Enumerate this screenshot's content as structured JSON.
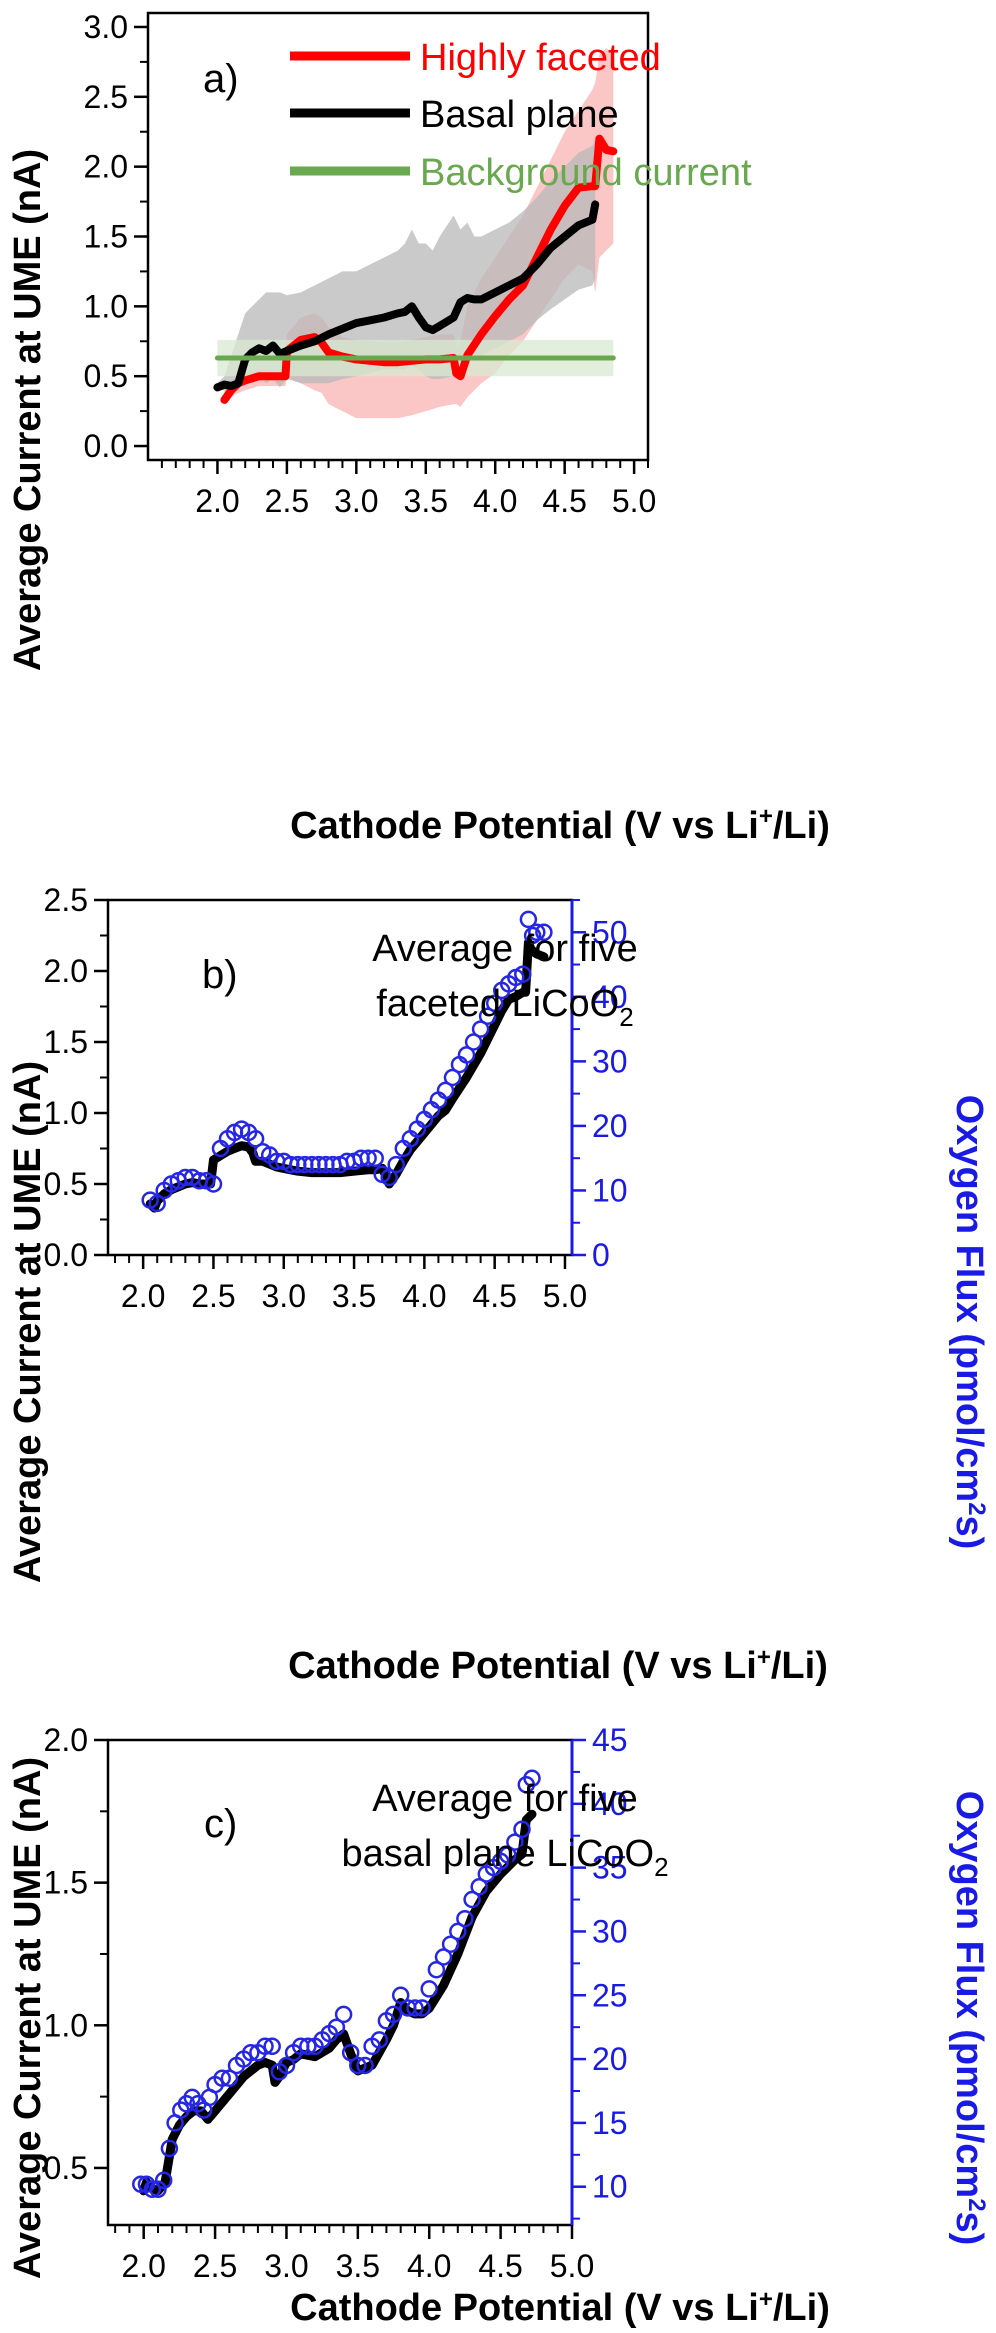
{
  "colors": {
    "faceted": "#ff0000",
    "faceted_band": "#f9b3b3",
    "basal": "#000000",
    "basal_band": "#b8b8b8",
    "background": "#6aa84f",
    "background_band": "#d7ead0",
    "flux": "#2626e6"
  },
  "chart_data": [
    {
      "panel": "a",
      "panel_label": "a)",
      "type": "line",
      "xlabel": "Cathode Potential (V vs Li+/Li)",
      "xlabel_parts": [
        "Cathode Potential (V vs Li",
        "+",
        "/Li)"
      ],
      "ylabel": "Average Current at UME (nA)",
      "xlim": [
        1.5,
        5.1
      ],
      "ylim": [
        -0.1,
        3.1
      ],
      "xticks": [
        "2.0",
        "2.5",
        "3.0",
        "3.5",
        "4.0",
        "4.5",
        "5.0"
      ],
      "yticks": [
        "0.0",
        "0.5",
        "1.0",
        "1.5",
        "2.0",
        "2.5",
        "3.0"
      ],
      "legend": [
        "Highly faceted",
        "Basal plane",
        "Background current"
      ],
      "legend_position": "top-left",
      "series": [
        {
          "name": "Highly faceted",
          "color": "faceted",
          "x": [
            2.05,
            2.1,
            2.15,
            2.2,
            2.3,
            2.4,
            2.49,
            2.5,
            2.6,
            2.7,
            2.75,
            2.8,
            2.9,
            3.0,
            3.1,
            3.2,
            3.3,
            3.4,
            3.5,
            3.6,
            3.7,
            3.72,
            3.75,
            3.8,
            3.9,
            4.0,
            4.1,
            4.2,
            4.3,
            4.4,
            4.5,
            4.6,
            4.7,
            4.72,
            4.75,
            4.8,
            4.85
          ],
          "y": [
            0.33,
            0.4,
            0.45,
            0.47,
            0.5,
            0.5,
            0.5,
            0.68,
            0.76,
            0.78,
            0.74,
            0.67,
            0.64,
            0.62,
            0.61,
            0.6,
            0.6,
            0.61,
            0.62,
            0.62,
            0.63,
            0.52,
            0.5,
            0.65,
            0.8,
            0.93,
            1.05,
            1.15,
            1.35,
            1.55,
            1.72,
            1.85,
            1.86,
            1.86,
            2.2,
            2.12,
            2.11
          ],
          "band_upper": [
            0.4,
            0.45,
            0.5,
            0.52,
            0.55,
            0.55,
            0.55,
            0.8,
            0.92,
            0.95,
            0.92,
            0.85,
            0.78,
            0.76,
            0.75,
            0.74,
            0.74,
            0.76,
            0.78,
            0.8,
            0.8,
            0.7,
            0.75,
            1.0,
            1.2,
            1.35,
            1.5,
            1.65,
            1.85,
            2.05,
            2.25,
            2.4,
            2.55,
            2.6,
            2.8,
            2.85,
            2.8
          ],
          "band_lower": [
            0.3,
            0.35,
            0.38,
            0.4,
            0.43,
            0.43,
            0.43,
            0.5,
            0.45,
            0.4,
            0.38,
            0.3,
            0.25,
            0.2,
            0.2,
            0.2,
            0.2,
            0.22,
            0.25,
            0.28,
            0.3,
            0.3,
            0.28,
            0.35,
            0.45,
            0.52,
            0.65,
            0.75,
            0.9,
            1.05,
            1.2,
            1.3,
            1.25,
            1.1,
            1.35,
            1.4,
            1.45
          ]
        },
        {
          "name": "Basal plane",
          "color": "basal",
          "x": [
            2.0,
            2.05,
            2.1,
            2.15,
            2.2,
            2.25,
            2.3,
            2.35,
            2.4,
            2.45,
            2.5,
            2.6,
            2.7,
            2.8,
            2.9,
            3.0,
            3.1,
            3.2,
            3.3,
            3.35,
            3.4,
            3.45,
            3.5,
            3.55,
            3.6,
            3.7,
            3.75,
            3.8,
            3.85,
            3.9,
            4.0,
            4.1,
            4.2,
            4.3,
            4.4,
            4.5,
            4.6,
            4.7,
            4.72
          ],
          "y": [
            0.42,
            0.44,
            0.43,
            0.45,
            0.62,
            0.67,
            0.7,
            0.68,
            0.72,
            0.66,
            0.68,
            0.72,
            0.75,
            0.8,
            0.84,
            0.88,
            0.9,
            0.92,
            0.95,
            0.96,
            1.0,
            0.92,
            0.85,
            0.83,
            0.86,
            0.92,
            1.03,
            1.06,
            1.05,
            1.05,
            1.1,
            1.15,
            1.2,
            1.3,
            1.42,
            1.5,
            1.58,
            1.62,
            1.73
          ],
          "band_upper": [
            0.45,
            0.5,
            0.65,
            0.8,
            0.95,
            1.0,
            1.05,
            1.1,
            1.1,
            1.1,
            1.08,
            1.1,
            1.15,
            1.2,
            1.25,
            1.25,
            1.3,
            1.35,
            1.4,
            1.45,
            1.55,
            1.45,
            1.45,
            1.4,
            1.5,
            1.65,
            1.55,
            1.6,
            1.5,
            1.5,
            1.55,
            1.6,
            1.68,
            1.78,
            1.9,
            2.0,
            2.1,
            2.15,
            2.2
          ],
          "band_lower": [
            0.4,
            0.4,
            0.38,
            0.4,
            0.48,
            0.48,
            0.5,
            0.45,
            0.48,
            0.42,
            0.48,
            0.45,
            0.45,
            0.45,
            0.48,
            0.5,
            0.52,
            0.55,
            0.55,
            0.55,
            0.58,
            0.55,
            0.5,
            0.48,
            0.48,
            0.5,
            0.6,
            0.65,
            0.65,
            0.65,
            0.7,
            0.75,
            0.8,
            0.9,
            0.98,
            1.05,
            1.12,
            1.15,
            1.2
          ]
        },
        {
          "name": "Background current",
          "color": "background",
          "x": [
            2.0,
            4.85
          ],
          "y": [
            0.63,
            0.63
          ],
          "band_upper": [
            0.76,
            0.76
          ],
          "band_lower": [
            0.5,
            0.5
          ]
        }
      ]
    },
    {
      "panel": "b",
      "panel_label": "b)",
      "type": "line",
      "annotation_lines": [
        "Average for five",
        "faceted LiCoO"
      ],
      "annotation_subscript": "2",
      "xlabel": "Cathode Potential (V vs Li+/Li)",
      "xlabel_parts": [
        "Cathode Potential (V vs Li",
        "+",
        "/Li)"
      ],
      "ylabel": "Average Current at UME (nA)",
      "y2label": "Oxygen Flux (pmol/cm2s)",
      "y2label_parts": [
        "Oxygen Flux (pmol/cm",
        "2",
        "s)"
      ],
      "xlim": [
        1.75,
        5.05
      ],
      "ylim": [
        0,
        2.5
      ],
      "y2lim": [
        0,
        55
      ],
      "xticks": [
        "2.0",
        "2.5",
        "3.0",
        "3.5",
        "4.0",
        "4.5",
        "5.0"
      ],
      "yticks": [
        "0.0",
        "0.5",
        "1.0",
        "1.5",
        "2.0",
        "2.5"
      ],
      "y2ticks": [
        "0",
        "10",
        "20",
        "30",
        "40",
        "50"
      ],
      "series": [
        {
          "name": "current",
          "color": "basal",
          "x": [
            2.05,
            2.08,
            2.1,
            2.15,
            2.2,
            2.25,
            2.3,
            2.35,
            2.4,
            2.45,
            2.48,
            2.5,
            2.55,
            2.6,
            2.65,
            2.7,
            2.75,
            2.78,
            2.8,
            2.85,
            2.9,
            2.95,
            3.0,
            3.1,
            3.2,
            3.3,
            3.4,
            3.5,
            3.6,
            3.65,
            3.7,
            3.73,
            3.75,
            3.8,
            3.85,
            3.9,
            4.0,
            4.1,
            4.15,
            4.2,
            4.3,
            4.4,
            4.5,
            4.55,
            4.6,
            4.65,
            4.7,
            4.72,
            4.74,
            4.76,
            4.8,
            4.85
          ],
          "y": [
            0.36,
            0.33,
            0.38,
            0.43,
            0.46,
            0.48,
            0.5,
            0.51,
            0.5,
            0.5,
            0.5,
            0.67,
            0.7,
            0.73,
            0.75,
            0.77,
            0.76,
            0.72,
            0.66,
            0.66,
            0.64,
            0.62,
            0.61,
            0.59,
            0.58,
            0.58,
            0.58,
            0.59,
            0.6,
            0.6,
            0.61,
            0.55,
            0.5,
            0.57,
            0.66,
            0.74,
            0.86,
            0.98,
            1.02,
            1.1,
            1.25,
            1.42,
            1.62,
            1.72,
            1.8,
            1.82,
            1.85,
            1.85,
            2.2,
            2.15,
            2.12,
            2.1
          ]
        },
        {
          "name": "flux",
          "color": "flux",
          "marker": "circle",
          "x": [
            2.05,
            2.1,
            2.15,
            2.2,
            2.25,
            2.3,
            2.35,
            2.4,
            2.45,
            2.5,
            2.55,
            2.6,
            2.65,
            2.7,
            2.75,
            2.8,
            2.85,
            2.9,
            2.95,
            3.0,
            3.05,
            3.1,
            3.15,
            3.2,
            3.25,
            3.3,
            3.35,
            3.4,
            3.45,
            3.5,
            3.55,
            3.6,
            3.65,
            3.7,
            3.75,
            3.8,
            3.85,
            3.9,
            3.95,
            4.0,
            4.05,
            4.1,
            4.15,
            4.2,
            4.25,
            4.3,
            4.35,
            4.4,
            4.45,
            4.5,
            4.55,
            4.6,
            4.65,
            4.7,
            4.74,
            4.77,
            4.8,
            4.85
          ],
          "y": [
            8.5,
            8,
            10,
            11,
            11.5,
            12,
            12,
            11.5,
            11.5,
            11,
            16.5,
            18,
            19,
            19.5,
            19,
            18,
            16,
            15.5,
            14.5,
            14.5,
            14,
            14,
            14,
            14,
            14,
            14,
            14,
            14,
            14.5,
            14.5,
            15,
            15,
            15,
            12.5,
            12,
            14,
            16.5,
            18,
            19.5,
            21,
            22.5,
            24,
            25.5,
            27.5,
            29.5,
            31,
            33,
            35,
            37,
            39,
            41,
            42,
            43,
            43.5,
            52,
            49.5,
            50,
            50
          ]
        }
      ]
    },
    {
      "panel": "c",
      "panel_label": "c)",
      "type": "line",
      "annotation_lines": [
        "Average for five",
        "basal plane LiCoO"
      ],
      "annotation_subscript": "2",
      "xlabel": "Cathode Potential (V vs Li+/Li)",
      "xlabel_parts": [
        "Cathode Potential (V vs Li",
        "+",
        "/Li)"
      ],
      "ylabel": "Average Current at UME (nA)",
      "y2label": "Oxygen Flux (pmol/cm2s)",
      "y2label_parts": [
        "Oxygen Flux (pmol/cm",
        "2",
        "s)"
      ],
      "xlim": [
        1.75,
        5.0
      ],
      "ylim": [
        0.3,
        2.0
      ],
      "y2lim": [
        7,
        45
      ],
      "xticks": [
        "2.0",
        "2.5",
        "3.0",
        "3.5",
        "4.0",
        "4.5",
        "5.0"
      ],
      "yticks": [
        "0.5",
        "1.0",
        "1.5",
        "2.0"
      ],
      "y2ticks": [
        "10",
        "15",
        "20",
        "25",
        "30",
        "35",
        "40",
        "45"
      ],
      "series": [
        {
          "name": "current",
          "color": "basal",
          "x": [
            2.0,
            2.02,
            2.05,
            2.1,
            2.15,
            2.2,
            2.25,
            2.3,
            2.35,
            2.4,
            2.45,
            2.5,
            2.6,
            2.7,
            2.8,
            2.85,
            2.9,
            2.92,
            2.95,
            3.0,
            3.05,
            3.1,
            3.2,
            3.3,
            3.35,
            3.4,
            3.45,
            3.5,
            3.55,
            3.6,
            3.7,
            3.75,
            3.8,
            3.85,
            3.9,
            3.95,
            4.0,
            4.1,
            4.2,
            4.3,
            4.4,
            4.5,
            4.6,
            4.65,
            4.68,
            4.7,
            4.72
          ],
          "y": [
            0.42,
            0.45,
            0.43,
            0.42,
            0.45,
            0.6,
            0.65,
            0.68,
            0.7,
            0.7,
            0.67,
            0.7,
            0.76,
            0.82,
            0.86,
            0.87,
            0.86,
            0.8,
            0.82,
            0.87,
            0.88,
            0.9,
            0.89,
            0.92,
            0.95,
            0.97,
            0.9,
            0.84,
            0.85,
            0.86,
            0.95,
            1.0,
            1.08,
            1.05,
            1.04,
            1.04,
            1.06,
            1.14,
            1.25,
            1.38,
            1.47,
            1.53,
            1.58,
            1.6,
            1.72,
            1.73,
            1.74
          ]
        },
        {
          "name": "flux",
          "color": "flux",
          "marker": "circle",
          "x": [
            1.98,
            2.02,
            2.06,
            2.1,
            2.14,
            2.18,
            2.22,
            2.26,
            2.3,
            2.34,
            2.38,
            2.42,
            2.46,
            2.5,
            2.55,
            2.6,
            2.65,
            2.7,
            2.75,
            2.8,
            2.85,
            2.9,
            2.95,
            3.0,
            3.05,
            3.1,
            3.15,
            3.2,
            3.25,
            3.3,
            3.35,
            3.4,
            3.45,
            3.5,
            3.55,
            3.6,
            3.65,
            3.7,
            3.75,
            3.8,
            3.85,
            3.9,
            3.95,
            4.0,
            4.05,
            4.1,
            4.15,
            4.2,
            4.25,
            4.3,
            4.35,
            4.4,
            4.45,
            4.5,
            4.55,
            4.6,
            4.65,
            4.68,
            4.72
          ],
          "y": [
            10.2,
            10.2,
            9.8,
            9.8,
            10.5,
            13,
            15,
            16,
            16.5,
            17,
            16.5,
            16,
            17,
            18,
            18.5,
            18.5,
            19.5,
            20,
            20.5,
            20.5,
            21,
            21,
            19,
            19.5,
            20.5,
            21,
            21,
            21,
            21.5,
            22,
            22.5,
            23.5,
            20.5,
            19.5,
            19.5,
            21,
            21.5,
            23,
            23.5,
            25,
            24,
            24,
            24,
            25.5,
            27,
            28,
            29,
            30,
            31,
            32.5,
            33.5,
            34.5,
            35,
            35.5,
            36,
            37,
            38,
            41.5,
            42
          ]
        }
      ]
    }
  ]
}
